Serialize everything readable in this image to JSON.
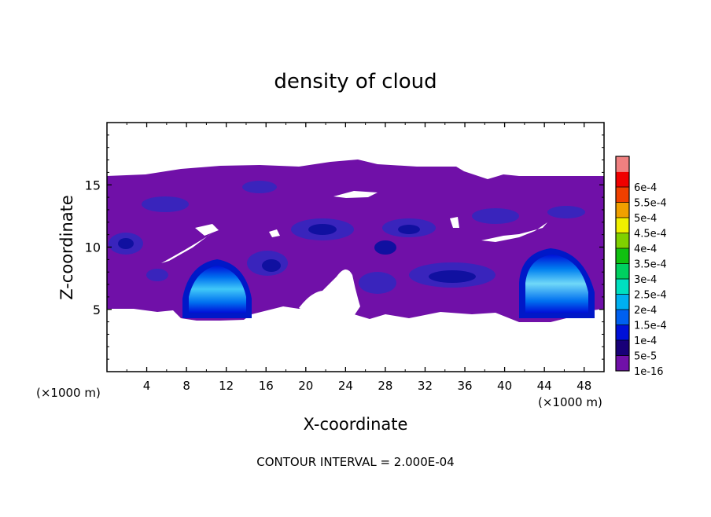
{
  "chart_data": {
    "type": "heatmap",
    "title": "density of cloud",
    "xlabel": "X-coordinate",
    "ylabel": "Z-coordinate",
    "xunit_left": "(×1000 m)",
    "xunit_right": "(×1000 m)",
    "footer": "CONTOUR INTERVAL = 2.000E-04",
    "xlim": [
      0,
      50
    ],
    "ylim": [
      0,
      20
    ],
    "xticks": [
      4,
      8,
      12,
      16,
      20,
      24,
      28,
      32,
      36,
      40,
      44,
      48
    ],
    "yticks": [
      5,
      10,
      15
    ],
    "colorbar": {
      "labels": [
        "1e-16",
        "5e-5",
        "1e-4",
        "1.5e-4",
        "2e-4",
        "2.5e-4",
        "3e-4",
        "3.5e-4",
        "4e-4",
        "4.5e-4",
        "5e-4",
        "5.5e-4",
        "6e-4"
      ],
      "colors": [
        "#7010a8",
        "#180078",
        "#0010d8",
        "#0060f0",
        "#00b0f0",
        "#00e0c0",
        "#00d060",
        "#10c010",
        "#80d000",
        "#f0f000",
        "#f0a000",
        "#f04000",
        "#f00000",
        "#f08080"
      ]
    },
    "background_level": "1e-16",
    "cloud_layer": {
      "z_bottom": 5,
      "z_top": 15.7,
      "x_range": [
        0,
        50
      ]
    },
    "features": [
      {
        "name": "left cloud core",
        "x_center": 11.2,
        "z_center": 6.5,
        "peak": "2e-4"
      },
      {
        "name": "right cloud core",
        "x_center": 44.0,
        "z_center": 7.3,
        "peak": "2e-4"
      }
    ]
  }
}
